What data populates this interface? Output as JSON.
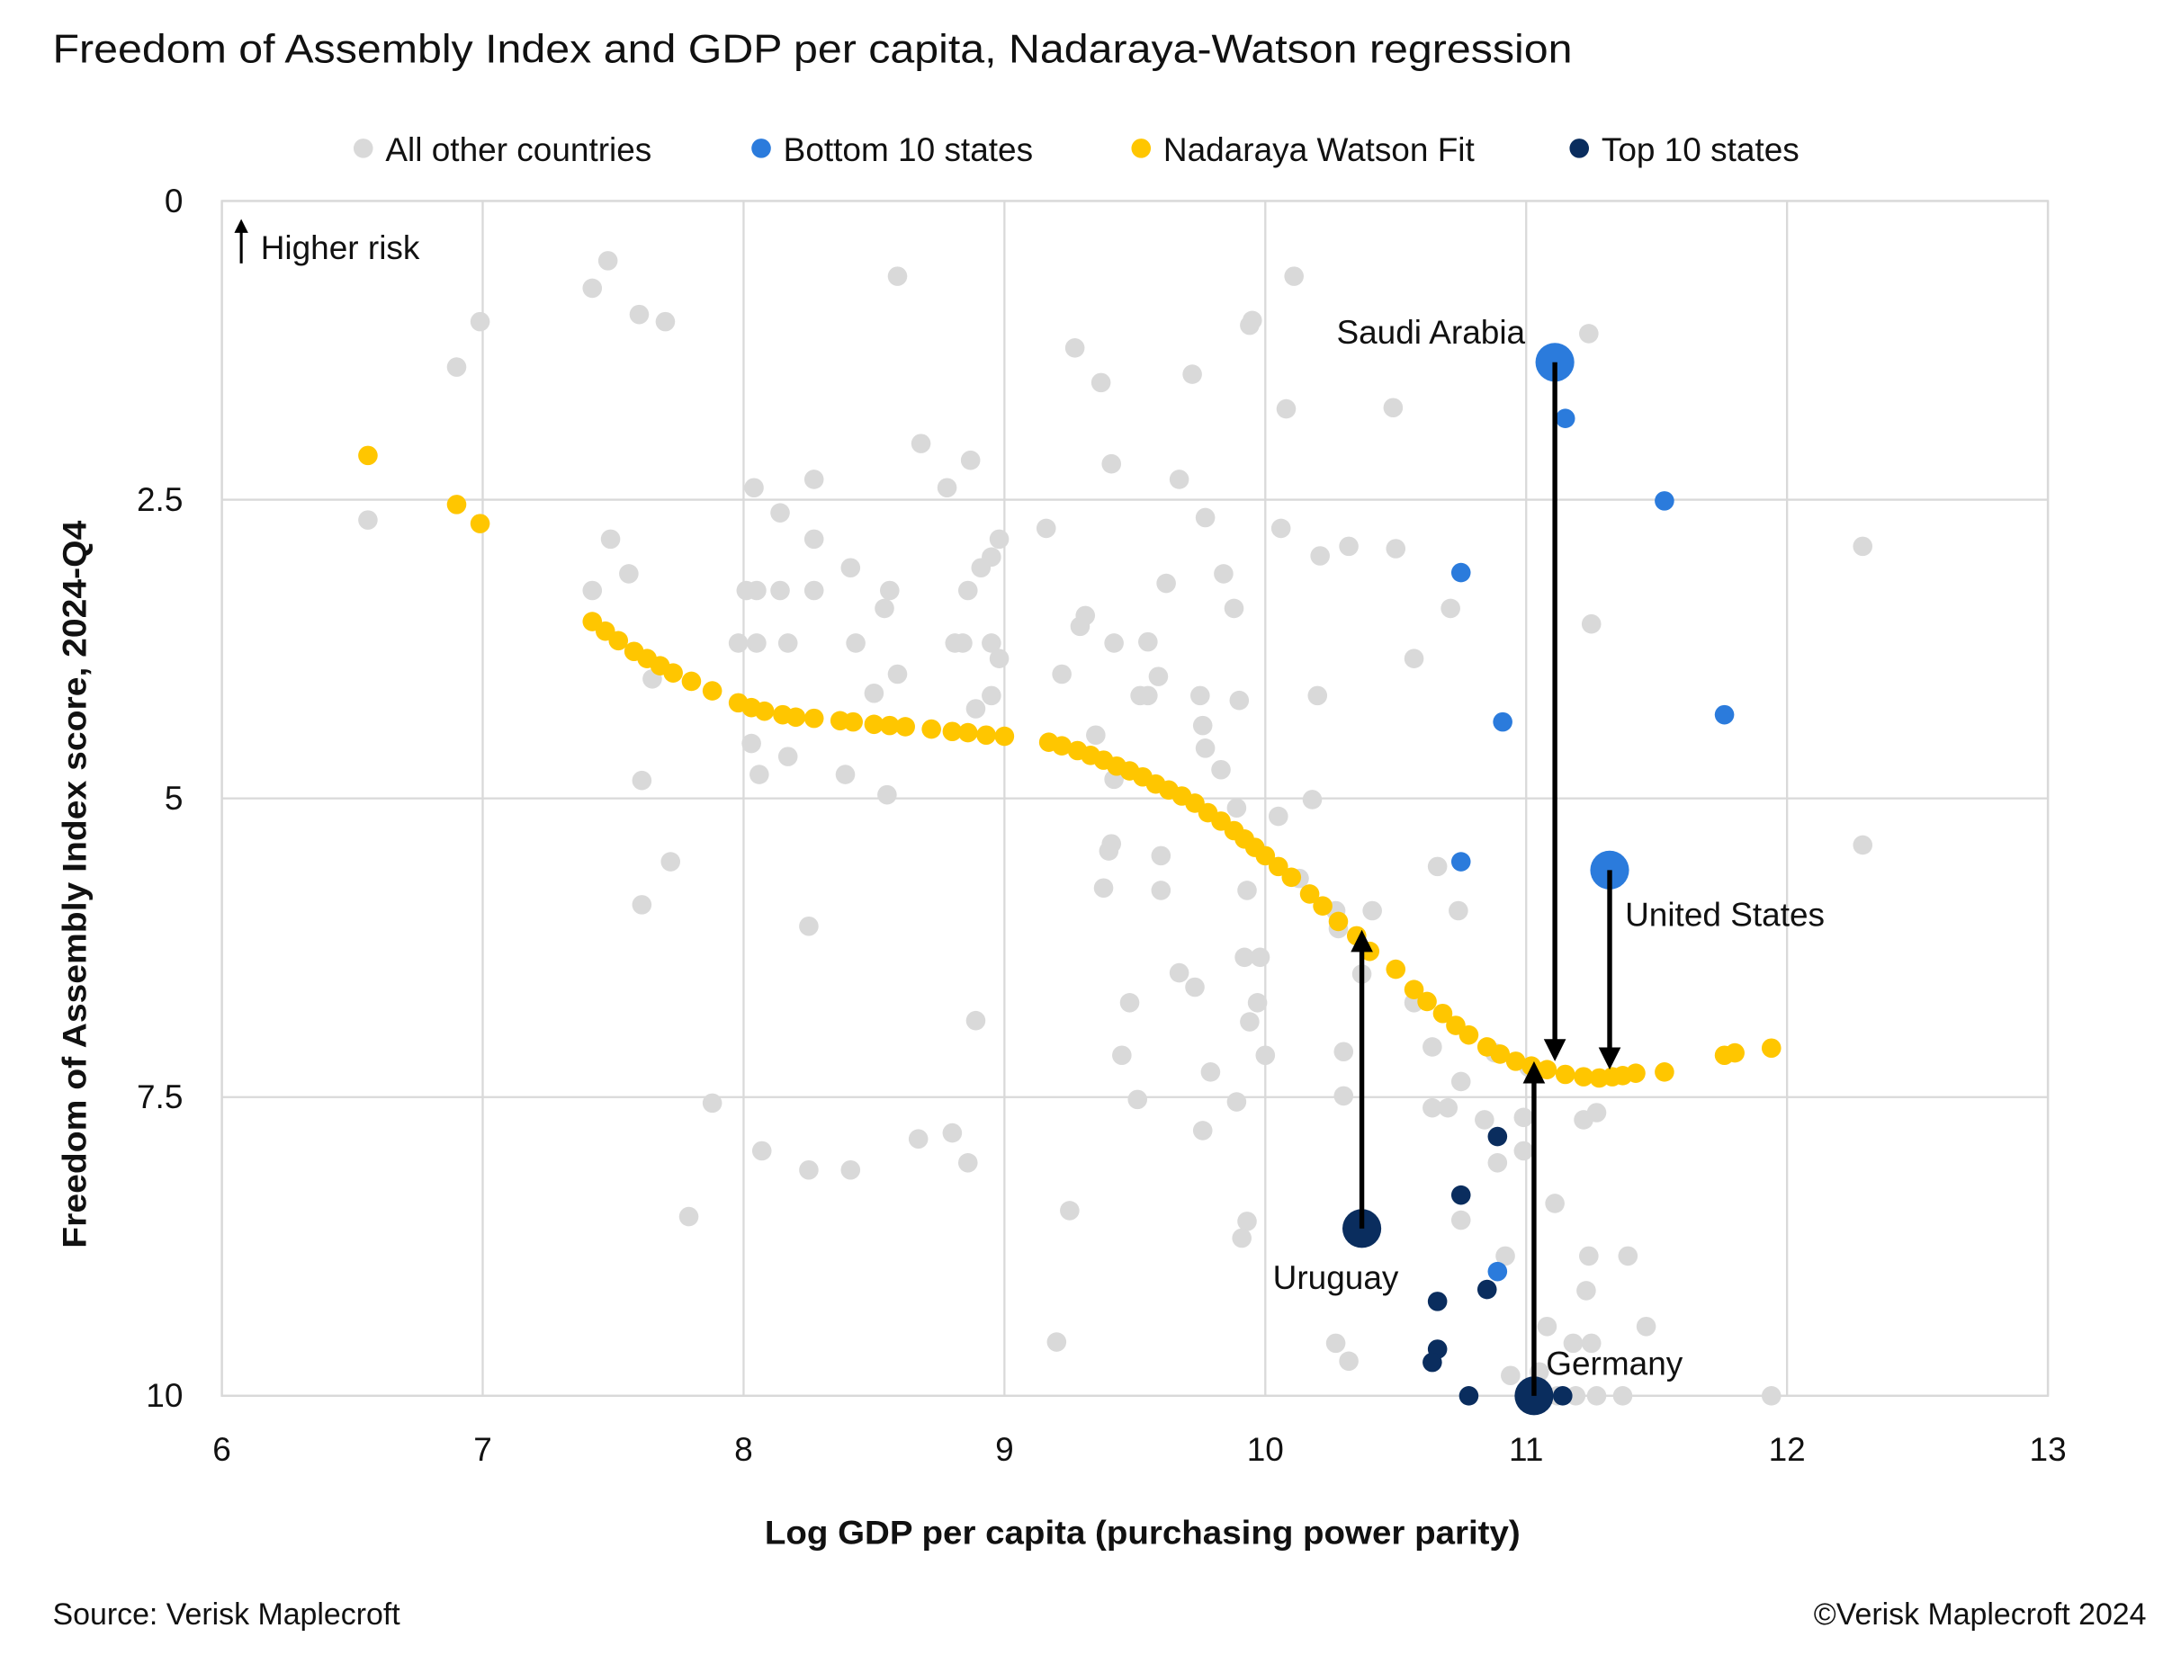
{
  "chart_data": {
    "type": "scatter",
    "title": "Freedom of Assembly Index and GDP per capita, Nadaraya-Watson regression",
    "xlabel": "Log GDP per capita (purchasing power parity)",
    "ylabel": "Freedom of Assembly Index score, 2024-Q4",
    "xlim": [
      6,
      13
    ],
    "ylim": [
      0,
      10
    ],
    "y_inverted": true,
    "grid": true,
    "legend_position": "top",
    "x_ticks": [
      "6",
      "7",
      "8",
      "9",
      "10",
      "11",
      "12",
      "13"
    ],
    "y_ticks": [
      "0",
      "2.5",
      "5",
      "7.5",
      "10"
    ],
    "risk_note": "Higher risk",
    "source": "Source: Verisk Maplecroft",
    "copyright": "©Verisk Maplecroft 2024",
    "series": [
      {
        "name": "All other countries",
        "color": "#d9d9d9",
        "points": [
          [
            6.56,
            2.67
          ],
          [
            6.9,
            1.39
          ],
          [
            6.99,
            1.01
          ],
          [
            7.42,
            0.73
          ],
          [
            7.48,
            0.5
          ],
          [
            7.6,
            0.95
          ],
          [
            7.7,
            1.01
          ],
          [
            8.59,
            0.63
          ],
          [
            10.11,
            0.63
          ],
          [
            9.94,
            1.04
          ],
          [
            9.95,
            1.0
          ],
          [
            11.24,
            1.11
          ],
          [
            9.27,
            1.23
          ],
          [
            9.37,
            1.52
          ],
          [
            9.72,
            1.45
          ],
          [
            10.08,
            1.74
          ],
          [
            10.49,
            1.73
          ],
          [
            8.68,
            2.03
          ],
          [
            8.87,
            2.17
          ],
          [
            9.41,
            2.2
          ],
          [
            9.67,
            2.33
          ],
          [
            8.04,
            2.4
          ],
          [
            8.27,
            2.33
          ],
          [
            8.78,
            2.4
          ],
          [
            8.14,
            2.61
          ],
          [
            9.77,
            2.65
          ],
          [
            9.16,
            2.74
          ],
          [
            10.06,
            2.74
          ],
          [
            7.49,
            2.83
          ],
          [
            8.27,
            2.83
          ],
          [
            8.98,
            2.83
          ],
          [
            10.32,
            2.89
          ],
          [
            10.21,
            2.97
          ],
          [
            10.5,
            2.91
          ],
          [
            12.29,
            2.89
          ],
          [
            7.56,
            3.12
          ],
          [
            8.41,
            3.07
          ],
          [
            8.91,
            3.07
          ],
          [
            8.95,
            2.98
          ],
          [
            9.84,
            3.12
          ],
          [
            9.62,
            3.2
          ],
          [
            7.42,
            3.26
          ],
          [
            8.01,
            3.26
          ],
          [
            8.05,
            3.26
          ],
          [
            8.14,
            3.26
          ],
          [
            8.27,
            3.26
          ],
          [
            8.56,
            3.26
          ],
          [
            8.86,
            3.26
          ],
          [
            8.54,
            3.41
          ],
          [
            9.88,
            3.41
          ],
          [
            9.31,
            3.47
          ],
          [
            9.29,
            3.56
          ],
          [
            10.71,
            3.41
          ],
          [
            11.25,
            3.54
          ],
          [
            7.98,
            3.7
          ],
          [
            8.05,
            3.7
          ],
          [
            8.17,
            3.7
          ],
          [
            8.43,
            3.7
          ],
          [
            8.81,
            3.7
          ],
          [
            8.84,
            3.7
          ],
          [
            8.95,
            3.7
          ],
          [
            8.98,
            3.83
          ],
          [
            9.42,
            3.7
          ],
          [
            9.55,
            3.69
          ],
          [
            10.57,
            3.83
          ],
          [
            7.65,
            4.0
          ],
          [
            8.59,
            3.96
          ],
          [
            9.22,
            3.96
          ],
          [
            9.59,
            3.98
          ],
          [
            8.5,
            4.12
          ],
          [
            8.95,
            4.14
          ],
          [
            9.52,
            4.14
          ],
          [
            9.55,
            4.14
          ],
          [
            9.75,
            4.14
          ],
          [
            9.9,
            4.18
          ],
          [
            10.2,
            4.14
          ],
          [
            8.89,
            4.25
          ],
          [
            9.76,
            4.39
          ],
          [
            9.35,
            4.47
          ],
          [
            8.03,
            4.54
          ],
          [
            8.17,
            4.65
          ],
          [
            9.77,
            4.58
          ],
          [
            9.83,
            4.76
          ],
          [
            8.06,
            4.8
          ],
          [
            8.39,
            4.8
          ],
          [
            9.42,
            4.84
          ],
          [
            7.61,
            4.85
          ],
          [
            8.55,
            4.97
          ],
          [
            9.89,
            5.08
          ],
          [
            10.18,
            5.01
          ],
          [
            10.05,
            5.15
          ],
          [
            9.41,
            5.38
          ],
          [
            9.4,
            5.44
          ],
          [
            9.6,
            5.48
          ],
          [
            12.29,
            5.39
          ],
          [
            7.72,
            5.53
          ],
          [
            10.13,
            5.67
          ],
          [
            9.38,
            5.75
          ],
          [
            9.6,
            5.77
          ],
          [
            9.93,
            5.77
          ],
          [
            10.66,
            5.57
          ],
          [
            7.61,
            5.89
          ],
          [
            10.27,
            5.94
          ],
          [
            10.41,
            5.94
          ],
          [
            10.74,
            5.94
          ],
          [
            10.28,
            6.09
          ],
          [
            8.25,
            6.07
          ],
          [
            9.92,
            6.33
          ],
          [
            9.98,
            6.33
          ],
          [
            10.37,
            6.47
          ],
          [
            9.67,
            6.46
          ],
          [
            9.73,
            6.58
          ],
          [
            10.57,
            6.71
          ],
          [
            9.97,
            6.71
          ],
          [
            9.48,
            6.71
          ],
          [
            9.94,
            6.87
          ],
          [
            8.89,
            6.86
          ],
          [
            10.64,
            7.08
          ],
          [
            9.45,
            7.15
          ],
          [
            10.0,
            7.15
          ],
          [
            10.3,
            7.12
          ],
          [
            10.88,
            7.13
          ],
          [
            11.01,
            7.25
          ],
          [
            9.79,
            7.29
          ],
          [
            10.75,
            7.37
          ],
          [
            9.51,
            7.52
          ],
          [
            9.89,
            7.54
          ],
          [
            10.3,
            7.49
          ],
          [
            10.64,
            7.59
          ],
          [
            10.7,
            7.59
          ],
          [
            10.84,
            7.69
          ],
          [
            10.99,
            7.67
          ],
          [
            11.22,
            7.69
          ],
          [
            11.27,
            7.63
          ],
          [
            7.88,
            7.55
          ],
          [
            9.76,
            7.78
          ],
          [
            8.67,
            7.85
          ],
          [
            8.8,
            7.8
          ],
          [
            8.07,
            7.95
          ],
          [
            10.99,
            7.95
          ],
          [
            8.86,
            8.05
          ],
          [
            10.89,
            8.05
          ],
          [
            8.25,
            8.11
          ],
          [
            8.41,
            8.11
          ],
          [
            10.75,
            8.53
          ],
          [
            9.25,
            8.45
          ],
          [
            11.11,
            8.39
          ],
          [
            7.79,
            8.5
          ],
          [
            9.93,
            8.54
          ],
          [
            9.91,
            8.68
          ],
          [
            10.92,
            8.83
          ],
          [
            11.24,
            8.83
          ],
          [
            11.39,
            8.83
          ],
          [
            11.23,
            9.12
          ],
          [
            11.46,
            9.42
          ],
          [
            11.08,
            9.42
          ],
          [
            9.2,
            9.55
          ],
          [
            10.27,
            9.56
          ],
          [
            10.32,
            9.71
          ],
          [
            10.94,
            9.83
          ],
          [
            11.18,
            9.56
          ],
          [
            11.25,
            9.56
          ],
          [
            11.05,
            9.8
          ],
          [
            11.12,
            10
          ],
          [
            11.19,
            10
          ],
          [
            11.27,
            10
          ],
          [
            11.37,
            10
          ],
          [
            11.94,
            10
          ]
        ]
      },
      {
        "name": "Bottom 10 states",
        "color": "#2b7bdc",
        "points": [
          [
            11.15,
            1.82
          ],
          [
            11.53,
            2.51
          ],
          [
            10.75,
            3.11
          ],
          [
            10.91,
            4.36
          ],
          [
            11.76,
            4.3
          ],
          [
            10.75,
            5.53
          ],
          [
            10.89,
            8.96
          ]
        ]
      },
      {
        "name": "Nadaraya Watson Fit",
        "color": "#ffc600",
        "points": [
          [
            6.56,
            2.13
          ],
          [
            6.9,
            2.54
          ],
          [
            6.99,
            2.7
          ],
          [
            7.42,
            3.52
          ],
          [
            7.47,
            3.6
          ],
          [
            7.52,
            3.68
          ],
          [
            7.58,
            3.77
          ],
          [
            7.63,
            3.83
          ],
          [
            7.68,
            3.89
          ],
          [
            7.73,
            3.95
          ],
          [
            7.8,
            4.02
          ],
          [
            7.88,
            4.1
          ],
          [
            7.98,
            4.2
          ],
          [
            8.03,
            4.24
          ],
          [
            8.08,
            4.27
          ],
          [
            8.15,
            4.3
          ],
          [
            8.2,
            4.32
          ],
          [
            8.27,
            4.33
          ],
          [
            8.37,
            4.35
          ],
          [
            8.42,
            4.36
          ],
          [
            8.5,
            4.38
          ],
          [
            8.56,
            4.39
          ],
          [
            8.62,
            4.4
          ],
          [
            8.72,
            4.42
          ],
          [
            8.8,
            4.44
          ],
          [
            8.86,
            4.45
          ],
          [
            8.93,
            4.47
          ],
          [
            9.0,
            4.48
          ],
          [
            9.17,
            4.53
          ],
          [
            9.22,
            4.56
          ],
          [
            9.28,
            4.6
          ],
          [
            9.33,
            4.64
          ],
          [
            9.38,
            4.68
          ],
          [
            9.43,
            4.73
          ],
          [
            9.48,
            4.77
          ],
          [
            9.53,
            4.82
          ],
          [
            9.58,
            4.88
          ],
          [
            9.63,
            4.93
          ],
          [
            9.68,
            4.98
          ],
          [
            9.73,
            5.04
          ],
          [
            9.78,
            5.12
          ],
          [
            9.83,
            5.19
          ],
          [
            9.88,
            5.27
          ],
          [
            9.92,
            5.34
          ],
          [
            9.96,
            5.41
          ],
          [
            10.0,
            5.48
          ],
          [
            10.05,
            5.57
          ],
          [
            10.1,
            5.66
          ],
          [
            10.17,
            5.8
          ],
          [
            10.22,
            5.9
          ],
          [
            10.28,
            6.03
          ],
          [
            10.35,
            6.15
          ],
          [
            10.4,
            6.28
          ],
          [
            10.5,
            6.43
          ],
          [
            10.57,
            6.6
          ],
          [
            10.62,
            6.7
          ],
          [
            10.68,
            6.8
          ],
          [
            10.73,
            6.9
          ],
          [
            10.78,
            6.98
          ],
          [
            10.85,
            7.08
          ],
          [
            10.9,
            7.14
          ],
          [
            10.96,
            7.2
          ],
          [
            11.02,
            7.24
          ],
          [
            11.08,
            7.27
          ],
          [
            11.15,
            7.31
          ],
          [
            11.22,
            7.33
          ],
          [
            11.28,
            7.34
          ],
          [
            11.33,
            7.33
          ],
          [
            11.37,
            7.32
          ],
          [
            11.42,
            7.3
          ],
          [
            11.53,
            7.29
          ],
          [
            11.76,
            7.15
          ],
          [
            11.8,
            7.13
          ],
          [
            11.94,
            7.09
          ]
        ]
      },
      {
        "name": "Top 10 states",
        "color": "#0a2d5e",
        "points": [
          [
            10.89,
            7.83
          ],
          [
            10.75,
            8.32
          ],
          [
            10.66,
            9.21
          ],
          [
            10.85,
            9.11
          ],
          [
            10.66,
            9.61
          ],
          [
            10.64,
            9.72
          ],
          [
            10.78,
            10
          ],
          [
            11.14,
            10
          ]
        ]
      }
    ],
    "highlights": [
      {
        "label": "Saudi Arabia",
        "group": "Bottom 10 states",
        "x": 11.11,
        "y": 1.35,
        "fit_y": 7.2
      },
      {
        "label": "United States",
        "group": "Bottom 10 states",
        "x": 11.32,
        "y": 5.6,
        "fit_y": 7.27
      },
      {
        "label": "Uruguay",
        "group": "Top 10 states",
        "x": 10.37,
        "y": 8.6,
        "fit_y": 6.1
      },
      {
        "label": "Germany",
        "group": "Top 10 states",
        "x": 11.03,
        "y": 10,
        "fit_y": 7.2
      }
    ]
  }
}
